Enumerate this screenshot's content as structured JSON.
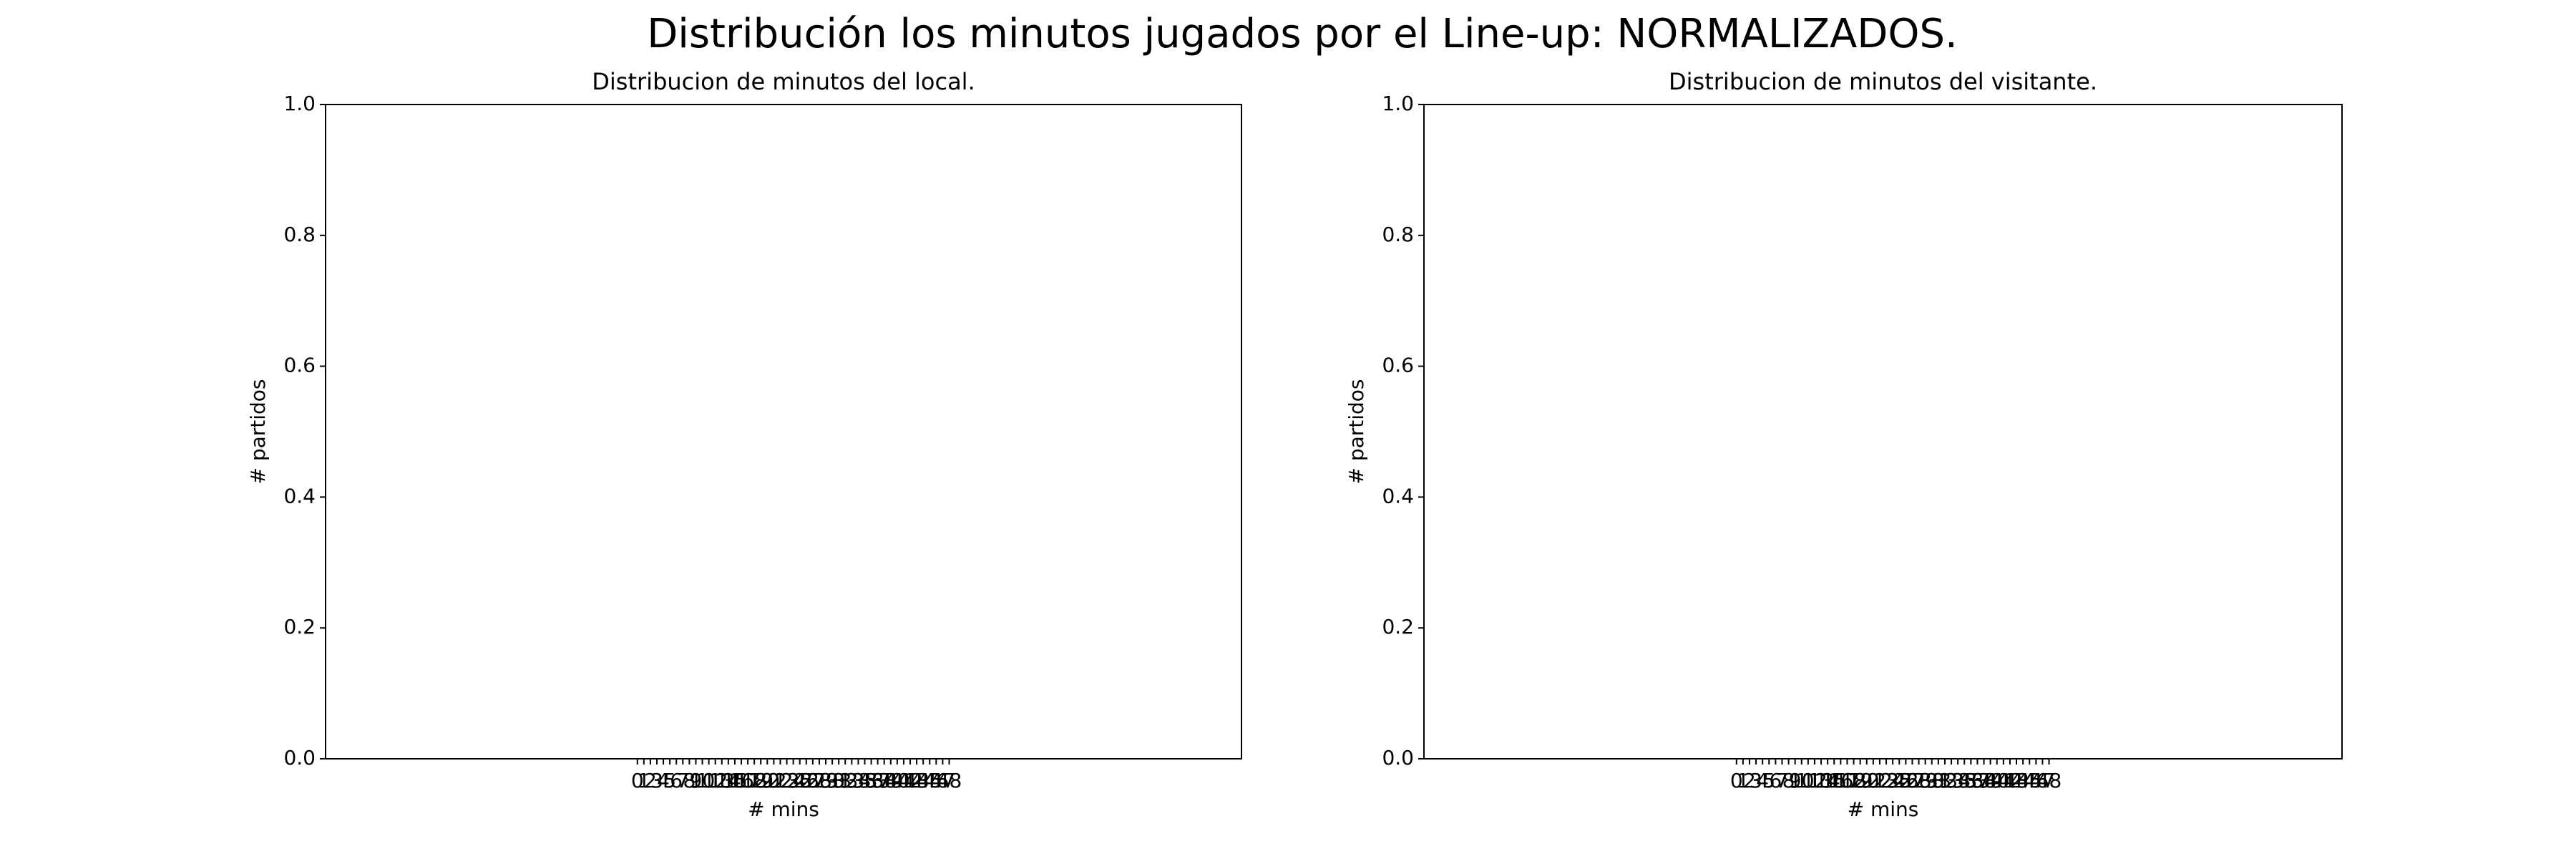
{
  "title": "Distribución los minutos jugados por el Line-up: NORMALIZADOS.",
  "chart_data": [
    {
      "type": "bar",
      "title": "Distribucion de minutos del local.",
      "x_label": "# mins",
      "y_label": "# partidos",
      "categories": [
        "0",
        "1",
        "2",
        "3",
        "4",
        "5",
        "6",
        "7",
        "8",
        "9",
        "10",
        "11",
        "12",
        "13",
        "14",
        "15",
        "16",
        "17",
        "18",
        "19",
        "20",
        "21",
        "22",
        "23",
        "24",
        "25",
        "26",
        "27",
        "28",
        "29",
        "30",
        "31",
        "32",
        "33",
        "34",
        "35",
        "36",
        "37",
        "38",
        "39",
        "40",
        "41",
        "42",
        "43",
        "44",
        "45",
        "46",
        "47",
        "48"
      ],
      "values": [
        0,
        0,
        0,
        0,
        0,
        0,
        0,
        0,
        0,
        0,
        0,
        0,
        0,
        0,
        0,
        0,
        0,
        0,
        0,
        0,
        0,
        0,
        0,
        0,
        0,
        0,
        0,
        0,
        0,
        0,
        0,
        0,
        0,
        0,
        0,
        0,
        0,
        0,
        0,
        0,
        0,
        0,
        0,
        0,
        0,
        0,
        0,
        0,
        0
      ],
      "color": "#1f77b4",
      "xlim": [
        -48,
        93
      ],
      "ylim": [
        0,
        1
      ],
      "yticks": [
        {
          "value": 0,
          "label": "0.0"
        },
        {
          "value": 0.2,
          "label": "0.2"
        },
        {
          "value": 0.4,
          "label": "0.4"
        },
        {
          "value": 0.6,
          "label": "0.6"
        },
        {
          "value": 0.8,
          "label": "0.8"
        },
        {
          "value": 1,
          "label": "1.0"
        }
      ]
    },
    {
      "type": "bar",
      "title": "Distribucion de minutos del visitante.",
      "x_label": "# mins",
      "y_label": "# partidos",
      "categories": [
        "0",
        "1",
        "2",
        "3",
        "4",
        "5",
        "6",
        "7",
        "8",
        "9",
        "10",
        "11",
        "12",
        "13",
        "14",
        "15",
        "16",
        "17",
        "18",
        "19",
        "20",
        "21",
        "22",
        "23",
        "24",
        "25",
        "26",
        "27",
        "28",
        "29",
        "30",
        "31",
        "32",
        "33",
        "34",
        "35",
        "36",
        "37",
        "38",
        "39",
        "40",
        "41",
        "42",
        "43",
        "44",
        "45",
        "46",
        "47",
        "48"
      ],
      "values": [
        0,
        0,
        0,
        0,
        0,
        0,
        0,
        0,
        0,
        0,
        0,
        0,
        0,
        0,
        0,
        0,
        0,
        0,
        0,
        0,
        0,
        0,
        0,
        0,
        0,
        0,
        0,
        0,
        0,
        0,
        0,
        0,
        0,
        0,
        0,
        0,
        0,
        0,
        0,
        0,
        0,
        0,
        0,
        0,
        0,
        0,
        0,
        0,
        0
      ],
      "color": "#1f77b4",
      "xlim": [
        -48,
        93
      ],
      "ylim": [
        0,
        1
      ],
      "yticks": [
        {
          "value": 0,
          "label": "0.0"
        },
        {
          "value": 0.2,
          "label": "0.2"
        },
        {
          "value": 0.4,
          "label": "0.4"
        },
        {
          "value": 0.6,
          "label": "0.6"
        },
        {
          "value": 0.8,
          "label": "0.8"
        },
        {
          "value": 1,
          "label": "1.0"
        }
      ]
    }
  ]
}
